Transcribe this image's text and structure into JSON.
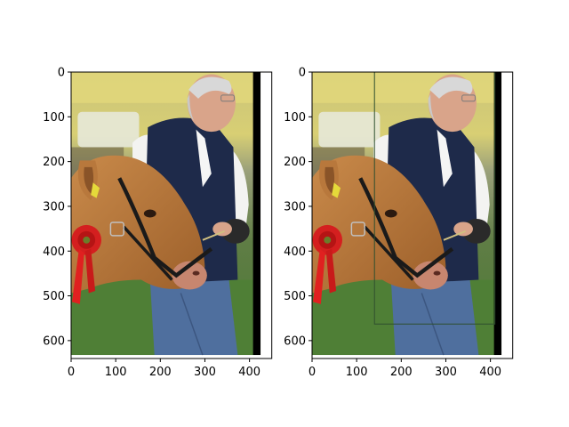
{
  "chart_data": [
    {
      "type": "image",
      "title": "",
      "xlabel": "",
      "ylabel": "",
      "xlim": [
        0,
        450
      ],
      "ylim": [
        640,
        0
      ],
      "image_width": 432,
      "image_height": 640,
      "xticks": [
        0,
        100,
        200,
        300,
        400
      ],
      "yticks": [
        0,
        100,
        200,
        300,
        400,
        500,
        600
      ],
      "grid": false,
      "legend": "none",
      "scene": "man in navy vest leading brown cow wearing red rosette ribbon"
    },
    {
      "type": "image",
      "title": "",
      "xlabel": "",
      "ylabel": "",
      "xlim": [
        0,
        450
      ],
      "ylim": [
        640,
        0
      ],
      "image_width": 432,
      "image_height": 640,
      "xticks": [
        0,
        100,
        200,
        300,
        400
      ],
      "yticks": [
        0,
        100,
        200,
        300,
        400,
        500,
        600
      ],
      "grid": false,
      "legend": "none",
      "scene": "same photo with detection bounding box around the man",
      "boxes": [
        {
          "x0": 140,
          "y0": 0,
          "x1": 410,
          "y1": 563,
          "color": "#2f4f2f"
        }
      ]
    }
  ],
  "colors": {
    "background": "#ffffff",
    "axis": "#000000",
    "box": "#2f4f2f",
    "right_edge_strip": "#000000"
  }
}
